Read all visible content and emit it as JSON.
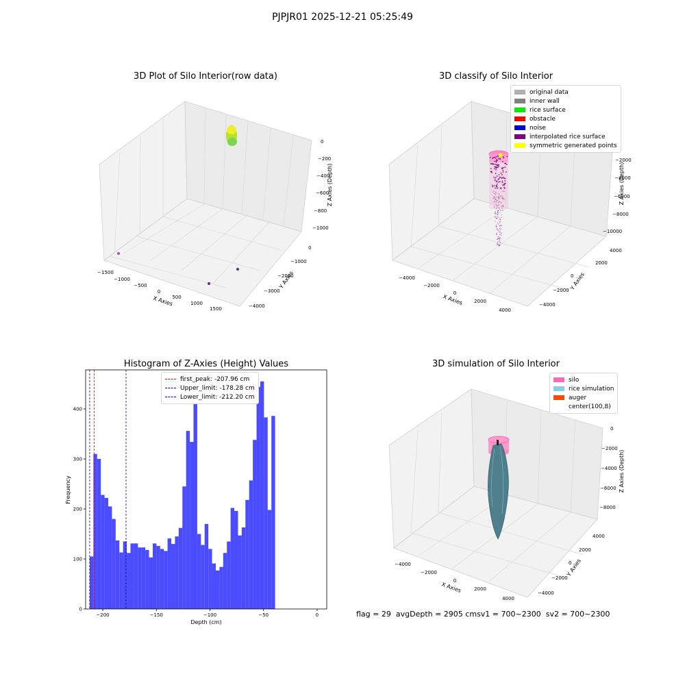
{
  "suptitle": "PJPJR01 2025-12-21 05:25:49",
  "chart_data": [
    {
      "type": "scatter",
      "title": "3D Plot of Silo Interior(row data)",
      "xlabel": "X Axies",
      "ylabel": "Y Axies",
      "zlabel": "Z Axies (Depth)",
      "x_ticks": [
        "−1500",
        "−1000",
        "−500",
        "0",
        "500",
        "1000",
        "1500"
      ],
      "y_ticks": [
        "0",
        "−1000",
        "−2000",
        "−3000",
        "−4000"
      ],
      "z_ticks": [
        "0",
        "−200",
        "−400",
        "−600",
        "−800",
        "−1000"
      ],
      "points": [
        {
          "x": -1500,
          "y": -500,
          "z": -1000,
          "color": "#9b59b6"
        },
        {
          "x": 900,
          "y": -4000,
          "z": -1000,
          "color": "#5b2c8f"
        },
        {
          "x": 1500,
          "y": -2000,
          "z": -1000,
          "color": "#5b2c8f"
        }
      ],
      "cluster_color": "#c4e63c"
    },
    {
      "type": "scatter",
      "title": "3D classify of Silo Interior",
      "xlabel": "X Axies",
      "ylabel": "Y Axies",
      "zlabel": "Z Axies (Depth)",
      "x_ticks": [
        "−4000",
        "−2000",
        "0",
        "2000",
        "4000"
      ],
      "y_ticks": [
        "4000",
        "2000",
        "0",
        "−2000",
        "−4000"
      ],
      "z_ticks": [
        "−2000",
        "−4000",
        "−6000",
        "−8000",
        "−10000"
      ],
      "legend": [
        {
          "label": "original data",
          "color": "#b0b0b0"
        },
        {
          "label": "inner wall",
          "color": "#808080"
        },
        {
          "label": "rice surface",
          "color": "#00ee00"
        },
        {
          "label": "obstacle",
          "color": "#ff0000"
        },
        {
          "label": "noise",
          "color": "#0000dd"
        },
        {
          "label": "interpolated rice surface",
          "color": "#800080"
        },
        {
          "label": "symmetric generated points",
          "color": "#ffff00"
        }
      ]
    },
    {
      "type": "bar",
      "title": "Histogram of Z-Axies (Height) Values",
      "xlabel": "Depth (cm)",
      "ylabel": "Frequency",
      "xlim": [
        -216,
        9
      ],
      "ylim": [
        0,
        478
      ],
      "x_ticks": [
        -200,
        -150,
        -100,
        -50,
        0
      ],
      "x_tick_labels": [
        "−200",
        "−150",
        "−100",
        "−50",
        "0"
      ],
      "y_ticks": [
        0,
        100,
        200,
        300,
        400
      ],
      "bin_start": -212.2,
      "bin_width": 3.46,
      "values": [
        105,
        310,
        300,
        228,
        222,
        205,
        180,
        137,
        113,
        135,
        112,
        131,
        131,
        123,
        123,
        118,
        103,
        131,
        126,
        120,
        116,
        141,
        130,
        145,
        162,
        245,
        356,
        334,
        418,
        150,
        128,
        170,
        120,
        91,
        77,
        84,
        112,
        135,
        202,
        196,
        147,
        163,
        218,
        257,
        338,
        444,
        455,
        383,
        198,
        386
      ],
      "bar_color": "#4b4bff",
      "vlines": [
        {
          "label": "first_peak: -207.96 cm",
          "x": -207.96,
          "color": "#ff0000"
        },
        {
          "label": "Upper_limit: -178.28 cm",
          "x": -178.28,
          "color": "#0000cc"
        },
        {
          "label": "Lower_limit: -212.20 cm",
          "x": -212.2,
          "color": "#0000cc"
        }
      ]
    },
    {
      "type": "scatter",
      "title": "3D simulation of Silo Interior",
      "xlabel": "X Axies",
      "ylabel": "Y Axies",
      "zlabel": "Z Axies (Depth)",
      "x_ticks": [
        "−4000",
        "−2000",
        "0",
        "2000",
        "4000"
      ],
      "y_ticks": [
        "4000",
        "2000",
        "0",
        "−2000",
        "−4000"
      ],
      "z_ticks": [
        "0",
        "−2000",
        "−4000",
        "−6000",
        "−8000"
      ],
      "legend": [
        {
          "label": "silo",
          "color": "#ff69b4"
        },
        {
          "label": "rice simulation",
          "color": "#87ceeb"
        },
        {
          "label": "auger",
          "color": "#ff4500"
        },
        {
          "label": "center(100,8)",
          "color": "#ffffff"
        }
      ]
    }
  ],
  "status": {
    "flag": "flag = 29",
    "avg_depth": "avgDepth = 2905 cm",
    "sv1": "sv1 = 700~2300",
    "sv2": "sv2 = 700~2300"
  }
}
